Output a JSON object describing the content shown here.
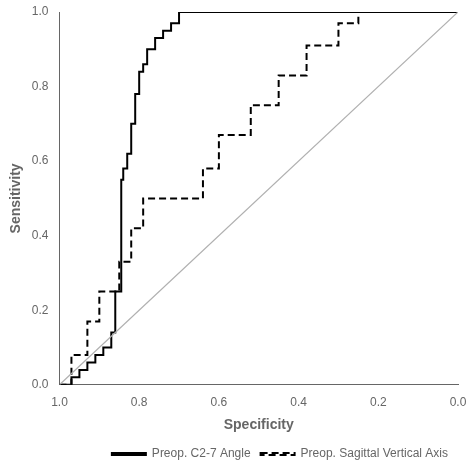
{
  "chart_data": {
    "type": "line",
    "xlabel": "Specificity",
    "ylabel": "Sensitivity",
    "xlim": [
      1.0,
      0.0
    ],
    "ylim": [
      0.0,
      1.0
    ],
    "xticks": [
      {
        "value": 1.0,
        "label": "1.0"
      },
      0.8,
      0.6,
      0.4,
      0.2,
      {
        "value": 0.0,
        "label": "0.0"
      }
    ],
    "yticks": [
      {
        "value": 0.0,
        "label": "0.0"
      },
      0.2,
      0.4,
      0.6,
      0.8,
      {
        "value": 1.0,
        "label": "1.0"
      }
    ],
    "grid": false,
    "legend": "lower right",
    "series": [
      {
        "color": "#b0b0b0",
        "line_style": "solid",
        "x": [
          1.0,
          0.0
        ],
        "values": [
          0.0,
          1.0
        ]
      },
      {
        "name": "Preop. C2-7 Angle",
        "color": "#000000",
        "line_style": "solid",
        "x": [
          1.0,
          0.97,
          0.97,
          0.95,
          0.95,
          0.93,
          0.93,
          0.91,
          0.91,
          0.89,
          0.89,
          0.87,
          0.87,
          0.86,
          0.86,
          0.845,
          0.845,
          0.84,
          0.84,
          0.83,
          0.83,
          0.82,
          0.82,
          0.81,
          0.81,
          0.8,
          0.8,
          0.79,
          0.79,
          0.78,
          0.78,
          0.76,
          0.76,
          0.74,
          0.74,
          0.72,
          0.72,
          0.7,
          0.7,
          0.0
        ],
        "values": [
          0.0,
          0.0,
          0.02,
          0.02,
          0.04,
          0.04,
          0.06,
          0.06,
          0.08,
          0.08,
          0.1,
          0.1,
          0.14,
          0.14,
          0.25,
          0.25,
          0.55,
          0.55,
          0.58,
          0.58,
          0.62,
          0.62,
          0.7,
          0.7,
          0.78,
          0.78,
          0.84,
          0.84,
          0.86,
          0.86,
          0.9,
          0.9,
          0.93,
          0.93,
          0.95,
          0.95,
          0.97,
          0.97,
          1.0,
          1.0
        ]
      },
      {
        "name": "Preop. Sagittal Vertical Axis",
        "color": "#000000",
        "line_style": "dashed",
        "x": [
          1.0,
          0.97,
          0.97,
          0.93,
          0.93,
          0.9,
          0.9,
          0.85,
          0.85,
          0.82,
          0.82,
          0.79,
          0.79,
          0.64,
          0.64,
          0.6,
          0.6,
          0.52,
          0.52,
          0.45,
          0.45,
          0.38,
          0.38,
          0.3,
          0.3,
          0.25,
          0.25,
          0.22,
          0.22,
          0.19,
          0.19,
          0.0
        ],
        "values": [
          0.0,
          0.0,
          0.08,
          0.08,
          0.17,
          0.17,
          0.25,
          0.25,
          0.33,
          0.33,
          0.42,
          0.42,
          0.5,
          0.5,
          0.58,
          0.58,
          0.67,
          0.67,
          0.75,
          0.75,
          0.83,
          0.83,
          0.91,
          0.91,
          0.97,
          0.97,
          1.0,
          1.0,
          1.0,
          1.0,
          1.0,
          1.0
        ]
      }
    ]
  }
}
